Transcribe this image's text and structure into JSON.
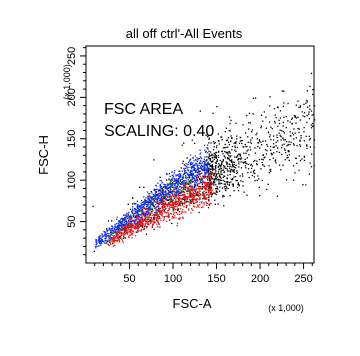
{
  "chart_data": {
    "type": "scatter",
    "title": "all off ctrl'-All Events",
    "xlabel": "FSC-A",
    "ylabel": "FSC-H",
    "x_multiplier": "(x 1,000)",
    "y_multiplier": "(x 1,000)",
    "xlim": [
      0,
      262
    ],
    "ylim": [
      0,
      262
    ],
    "x_major_ticks": [
      50,
      100,
      150,
      200,
      250
    ],
    "y_major_ticks": [
      50,
      100,
      150,
      200,
      250
    ],
    "x_minor_step": 10,
    "y_minor_step": 10,
    "grid": false,
    "annotations": [
      "FSC AREA",
      "SCALING: 0.40"
    ],
    "population_ranges": [
      {
        "color": "#000000",
        "x_from": 5,
        "x_to": 262,
        "count": 1300
      },
      {
        "color": "#1030ff",
        "x_from": 10,
        "x_to": 140,
        "count": 900
      },
      {
        "color": "#ee1010",
        "x_from": 25,
        "x_to": 145,
        "count": 800
      },
      {
        "color": "#10a020",
        "x_from": 20,
        "x_to": 120,
        "count": 70
      }
    ]
  }
}
